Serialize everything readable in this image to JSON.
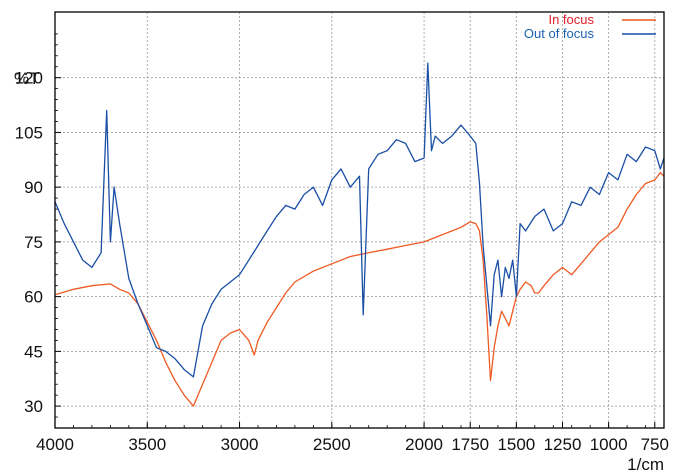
{
  "chart_data": {
    "type": "line",
    "xlabel": "1/cm",
    "ylabel": "%T",
    "xlim": [
      4000,
      700
    ],
    "ylim": [
      24,
      138
    ],
    "x_reversed": true,
    "grid": true,
    "legend_position": "top-right",
    "x_ticks": [
      4000,
      3500,
      3000,
      2500,
      2000,
      1750,
      1500,
      1250,
      1000,
      750
    ],
    "x_tick_labels": [
      "4000",
      "3500",
      "3000",
      "2500",
      "2000",
      "1750",
      "1500",
      "1250",
      "1000",
      "750"
    ],
    "y_ticks": [
      30,
      45,
      60,
      75,
      90,
      105,
      120
    ],
    "y_tick_labels": [
      "30",
      "45",
      "60",
      "75",
      "90",
      "105",
      "120"
    ],
    "series": [
      {
        "name": "In focus",
        "color": "#f05a22",
        "legend_color": "#e0202a",
        "x": [
          4000,
          3900,
          3800,
          3700,
          3650,
          3600,
          3550,
          3500,
          3450,
          3400,
          3350,
          3300,
          3250,
          3200,
          3150,
          3100,
          3050,
          3000,
          2950,
          2920,
          2900,
          2850,
          2800,
          2750,
          2700,
          2600,
          2500,
          2400,
          2300,
          2200,
          2100,
          2000,
          1900,
          1800,
          1750,
          1720,
          1700,
          1680,
          1660,
          1640,
          1620,
          1600,
          1580,
          1560,
          1540,
          1520,
          1500,
          1480,
          1450,
          1420,
          1400,
          1380,
          1350,
          1300,
          1250,
          1200,
          1150,
          1100,
          1050,
          1000,
          950,
          900,
          850,
          800,
          750,
          720,
          700
        ],
        "y": [
          60.5,
          62,
          63,
          63.5,
          62,
          61,
          58,
          53,
          48,
          42,
          37,
          33,
          30,
          36,
          42,
          48,
          50,
          51,
          48,
          44,
          48,
          53,
          57,
          61,
          64,
          67,
          69,
          71,
          72,
          73,
          74,
          75,
          77,
          79,
          80.5,
          80,
          78,
          70,
          55,
          37,
          46,
          52,
          56,
          54,
          52,
          56,
          60,
          62,
          64,
          63,
          61,
          61,
          63,
          66,
          68,
          66,
          69,
          72,
          75,
          77,
          79,
          84,
          88,
          91,
          92,
          94,
          93
        ]
      },
      {
        "name": "Out of focus",
        "color": "#1a4fa6",
        "legend_color": "#1a62b0",
        "x": [
          4000,
          3950,
          3900,
          3850,
          3800,
          3750,
          3720,
          3700,
          3680,
          3650,
          3600,
          3550,
          3500,
          3450,
          3400,
          3350,
          3300,
          3250,
          3200,
          3150,
          3100,
          3050,
          3000,
          2950,
          2900,
          2850,
          2800,
          2750,
          2700,
          2650,
          2600,
          2550,
          2500,
          2450,
          2400,
          2350,
          2330,
          2300,
          2250,
          2200,
          2150,
          2100,
          2050,
          2000,
          1980,
          1960,
          1940,
          1900,
          1850,
          1800,
          1750,
          1720,
          1700,
          1680,
          1660,
          1640,
          1620,
          1600,
          1580,
          1560,
          1540,
          1520,
          1500,
          1480,
          1450,
          1400,
          1350,
          1300,
          1250,
          1200,
          1150,
          1100,
          1050,
          1000,
          950,
          900,
          850,
          800,
          750,
          720,
          700
        ],
        "y": [
          86,
          80,
          75,
          70,
          68,
          72,
          111,
          75,
          90,
          80,
          65,
          58,
          52,
          46,
          45,
          43,
          40,
          38,
          52,
          58,
          62,
          64,
          66,
          70,
          74,
          78,
          82,
          85,
          84,
          88,
          90,
          85,
          92,
          95,
          90,
          93,
          55,
          95,
          99,
          100,
          103,
          102,
          97,
          98,
          124,
          100,
          104,
          102,
          104,
          107,
          104,
          102,
          91,
          74,
          63,
          52,
          66,
          70,
          60,
          68,
          65,
          70,
          60,
          80,
          78,
          82,
          84,
          78,
          80,
          86,
          85,
          90,
          88,
          94,
          92,
          99,
          97,
          101,
          100,
          95,
          98
        ]
      }
    ]
  }
}
